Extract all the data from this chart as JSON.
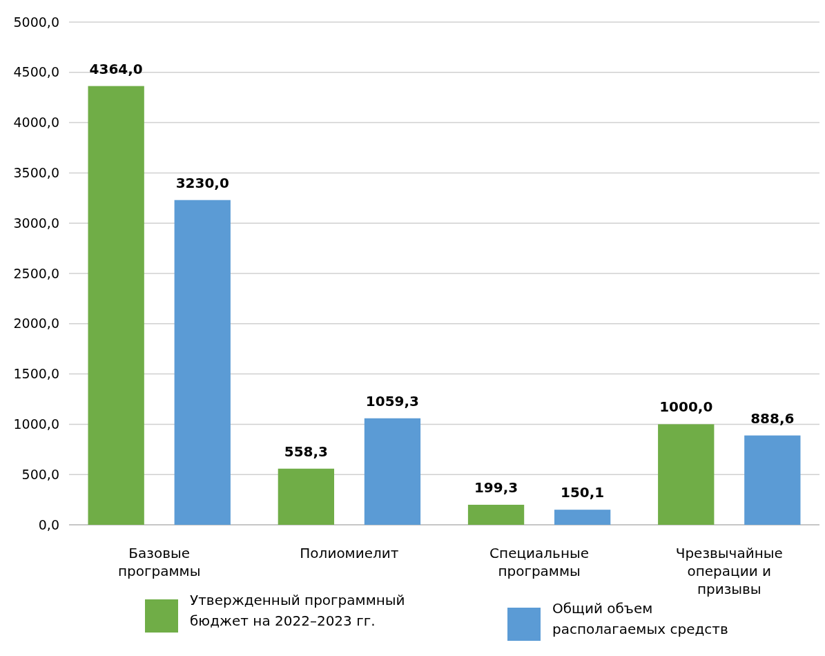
{
  "chart_data": {
    "type": "bar",
    "categories": [
      "Базовые программы",
      "Полиомиелит",
      "Специальные программы",
      "Чрезвычайные операции и призывы"
    ],
    "series": [
      {
        "name": "Утвержденный программный бюджет на 2022–2023 гг.",
        "color": "#70ad47",
        "values": [
          4364.0,
          558.3,
          199.3,
          1000.0
        ],
        "value_labels": [
          "4364,0",
          "558,3",
          "199,3",
          "1000,0"
        ]
      },
      {
        "name": "Общий объем располагаемых средств",
        "color": "#5b9bd5",
        "values": [
          3230.0,
          1059.3,
          150.1,
          888.6
        ],
        "value_labels": [
          "3230,0",
          "1059,3",
          "150,1",
          "888,6"
        ]
      }
    ],
    "ylim": [
      0,
      5000
    ],
    "yticks": [
      {
        "value": 0,
        "label": "0,0"
      },
      {
        "value": 500,
        "label": "500,0"
      },
      {
        "value": 1000,
        "label": "1000,0"
      },
      {
        "value": 1500,
        "label": "1500,0"
      },
      {
        "value": 2000,
        "label": "2000,0"
      },
      {
        "value": 2500,
        "label": "2500,0"
      },
      {
        "value": 3000,
        "label": "3000,0"
      },
      {
        "value": 3500,
        "label": "3500,0"
      },
      {
        "value": 4000,
        "label": "4000,0"
      },
      {
        "value": 4500,
        "label": "4500,0"
      },
      {
        "value": 5000,
        "label": "5000,0"
      }
    ],
    "grid": "y",
    "legend": "bottom"
  }
}
